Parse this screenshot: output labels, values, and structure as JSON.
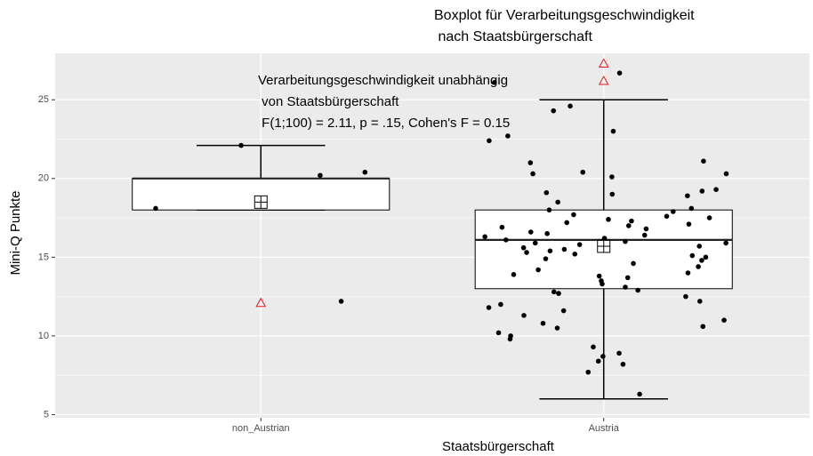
{
  "chart_data": {
    "type": "boxplot",
    "title": [
      "Boxplot für Verarbeitungsgeschwindigkeit",
      " nach Staatsbürgerschaft"
    ],
    "annotation": [
      "Verarbeitungsgeschwindigkeit unabhängig",
      " von Staatsbürgerschaft",
      " F(1;100) = 2.11, p = .15, Cohen's F = 0.15"
    ],
    "x_label": "Staatsbürgerschaft",
    "y_label": "Mini-Q Punkte",
    "categories": [
      "non_Austrian",
      "Austria"
    ],
    "ylim": [
      4.8,
      27.95
    ],
    "yticks": [
      5,
      10,
      15,
      20,
      25
    ],
    "grid": true,
    "background": "#ebebeb",
    "box_color": "#ffffff",
    "point_color": "#000000",
    "outlier_color": "#e41a1c",
    "boxes": [
      {
        "whisker_low": 18,
        "q1": 18,
        "median": 20,
        "q3": 20,
        "whisker_high": 22.1,
        "mean": 18.5
      },
      {
        "whisker_low": 6,
        "q1": 13,
        "median": 16.1,
        "q3": 18,
        "whisker_high": 25,
        "mean": 15.7
      }
    ],
    "outliers": [
      [
        12.1
      ],
      [
        27.3,
        26.2
      ]
    ],
    "points": [
      [
        20.4,
        20.2,
        18.1,
        22.1,
        12.2
      ],
      [
        26.1,
        26.7,
        24.6,
        24.3,
        23.0,
        22.7,
        22.4,
        21.1,
        21.0,
        20.4,
        20.3,
        20.3,
        20.1,
        19.3,
        19.2,
        19.1,
        19.0,
        18.9,
        18.5,
        18.1,
        18.0,
        17.9,
        17.7,
        17.6,
        17.5,
        17.4,
        17.3,
        17.2,
        17.1,
        17.0,
        16.9,
        16.8,
        16.6,
        16.5,
        16.4,
        16.3,
        16.2,
        16.1,
        16.0,
        15.9,
        15.9,
        15.8,
        15.7,
        15.6,
        15.5,
        15.4,
        15.3,
        15.2,
        15.1,
        15.0,
        14.9,
        14.8,
        14.6,
        14.4,
        14.2,
        14.0,
        13.9,
        13.8,
        13.7,
        13.5,
        13.3,
        13.1,
        12.9,
        12.8,
        12.7,
        12.5,
        12.2,
        12.0,
        11.8,
        11.6,
        11.3,
        11.0,
        10.8,
        10.6,
        10.5,
        10.2,
        10.0,
        9.8,
        9.3,
        8.9,
        8.7,
        8.4,
        8.2,
        7.7,
        6.3
      ]
    ]
  }
}
